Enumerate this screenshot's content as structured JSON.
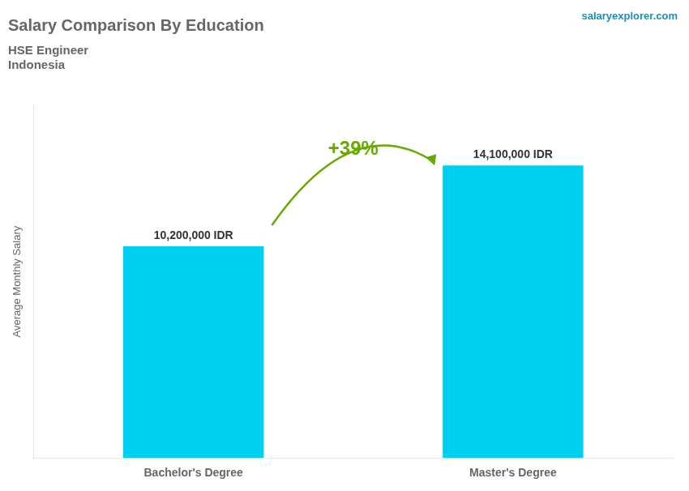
{
  "chart_data": {
    "type": "bar",
    "title": "Salary Comparison By Education",
    "subtitle": [
      "HSE Engineer",
      "Indonesia"
    ],
    "ylabel": "Average Monthly Salary",
    "categories": [
      "Bachelor's Degree",
      "Master's Degree"
    ],
    "values": [
      10200000,
      14100000
    ],
    "value_labels": [
      "10,200,000 IDR",
      "14,100,000 IDR"
    ],
    "data_labels": true,
    "color": "#00cfef",
    "ylim": [
      0,
      17000000
    ],
    "tick_labels": "x",
    "grid": false,
    "annotations": [
      "+39%",
      "salaryexplorer.com"
    ]
  }
}
